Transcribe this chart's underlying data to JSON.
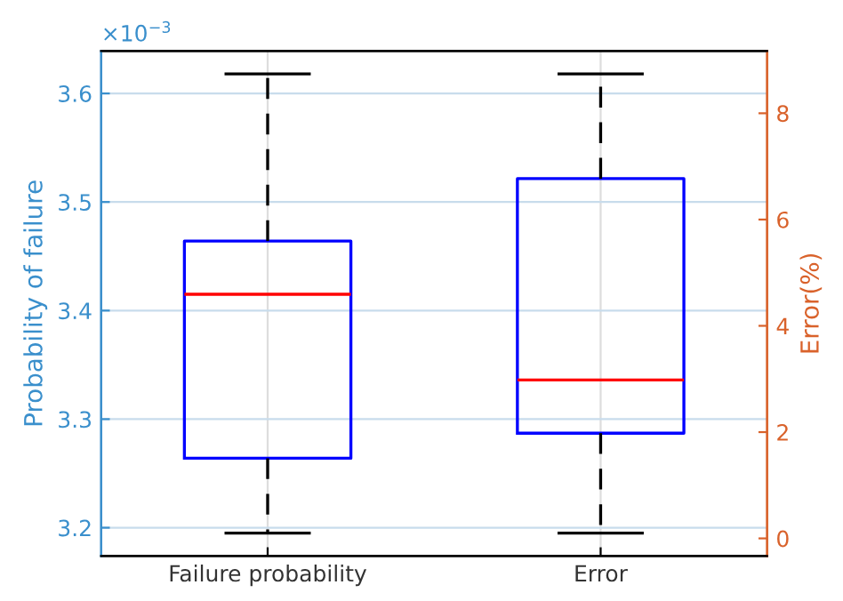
{
  "chart_data": {
    "type": "box",
    "categories": [
      "Failure probability",
      "Error"
    ],
    "ylabel": "Probability of failure",
    "y2label": "Error(%)",
    "annotations": [
      "×10$^{−3}$"
    ],
    "ylim": [
      3.174,
      3.639
    ],
    "yticks": [
      3.2,
      3.3,
      3.4,
      3.5,
      3.6
    ],
    "y2lim": [
      -0.33,
      9.17
    ],
    "y2ticks": [
      0,
      2,
      4,
      6,
      8
    ],
    "grid": true,
    "series": [
      {
        "axis": "y",
        "color": "#0000ff",
        "boxes": [
          {
            "low": 3.195,
            "q1": 3.264,
            "median": 3.415,
            "q3": 3.464,
            "high": 3.618
          },
          null
        ]
      },
      {
        "axis": "y2",
        "color": "#0000ff",
        "boxes": [
          null,
          {
            "low": 0.1,
            "q1": 1.98,
            "median": 2.98,
            "q3": 6.77,
            "high": 8.74
          }
        ]
      }
    ]
  }
}
